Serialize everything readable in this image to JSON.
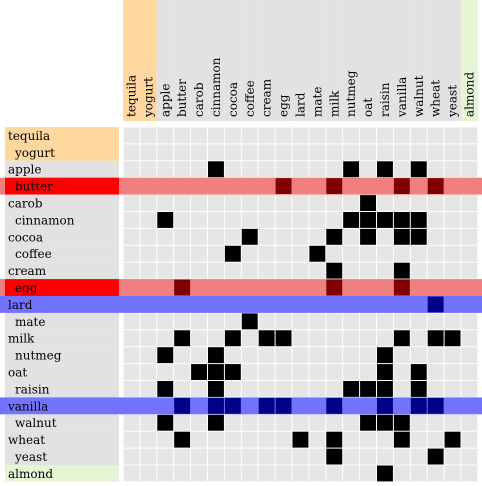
{
  "chart_data": {
    "type": "heatmap",
    "labels": [
      "tequila",
      "yogurt",
      "apple",
      "butter",
      "carob",
      "cinnamon",
      "cocoa",
      "coffee",
      "cream",
      "egg",
      "lard",
      "mate",
      "milk",
      "nutmeg",
      "oat",
      "raisin",
      "vanilla",
      "walnut",
      "wheat",
      "yeast",
      "almond"
    ],
    "row_indent": [
      false,
      true,
      false,
      true,
      false,
      true,
      false,
      true,
      false,
      true,
      false,
      true,
      false,
      true,
      false,
      true,
      false,
      true,
      false,
      true,
      false
    ],
    "highlight_rows": {
      "butter": "red",
      "egg": "red",
      "lard": "blue",
      "vanilla": "blue"
    },
    "highlight_columns": {
      "tequila": "orange",
      "yogurt": "orange",
      "almond": "green"
    },
    "cells": [
      [
        "apple",
        "cinnamon"
      ],
      [
        "apple",
        "nutmeg"
      ],
      [
        "apple",
        "raisin"
      ],
      [
        "apple",
        "walnut"
      ],
      [
        "butter",
        "egg"
      ],
      [
        "butter",
        "milk"
      ],
      [
        "butter",
        "vanilla"
      ],
      [
        "butter",
        "wheat"
      ],
      [
        "carob",
        "oat"
      ],
      [
        "cinnamon",
        "apple"
      ],
      [
        "cinnamon",
        "nutmeg"
      ],
      [
        "cinnamon",
        "oat"
      ],
      [
        "cinnamon",
        "raisin"
      ],
      [
        "cinnamon",
        "vanilla"
      ],
      [
        "cinnamon",
        "walnut"
      ],
      [
        "cocoa",
        "coffee"
      ],
      [
        "cocoa",
        "milk"
      ],
      [
        "cocoa",
        "oat"
      ],
      [
        "cocoa",
        "vanilla"
      ],
      [
        "cocoa",
        "walnut"
      ],
      [
        "coffee",
        "cocoa"
      ],
      [
        "coffee",
        "mate"
      ],
      [
        "cream",
        "milk"
      ],
      [
        "cream",
        "vanilla"
      ],
      [
        "egg",
        "butter"
      ],
      [
        "egg",
        "milk"
      ],
      [
        "egg",
        "vanilla"
      ],
      [
        "lard",
        "wheat"
      ],
      [
        "mate",
        "coffee"
      ],
      [
        "milk",
        "butter"
      ],
      [
        "milk",
        "cocoa"
      ],
      [
        "milk",
        "cream"
      ],
      [
        "milk",
        "egg"
      ],
      [
        "milk",
        "vanilla"
      ],
      [
        "milk",
        "wheat"
      ],
      [
        "milk",
        "yeast"
      ],
      [
        "nutmeg",
        "apple"
      ],
      [
        "nutmeg",
        "cinnamon"
      ],
      [
        "nutmeg",
        "raisin"
      ],
      [
        "oat",
        "carob"
      ],
      [
        "oat",
        "cinnamon"
      ],
      [
        "oat",
        "cocoa"
      ],
      [
        "oat",
        "raisin"
      ],
      [
        "oat",
        "walnut"
      ],
      [
        "raisin",
        "apple"
      ],
      [
        "raisin",
        "cinnamon"
      ],
      [
        "raisin",
        "nutmeg"
      ],
      [
        "raisin",
        "oat"
      ],
      [
        "raisin",
        "raisin"
      ],
      [
        "raisin",
        "walnut"
      ],
      [
        "vanilla",
        "butter"
      ],
      [
        "vanilla",
        "cinnamon"
      ],
      [
        "vanilla",
        "cocoa"
      ],
      [
        "vanilla",
        "cream"
      ],
      [
        "vanilla",
        "egg"
      ],
      [
        "vanilla",
        "milk"
      ],
      [
        "vanilla",
        "raisin"
      ],
      [
        "vanilla",
        "walnut"
      ],
      [
        "vanilla",
        "wheat"
      ],
      [
        "walnut",
        "apple"
      ],
      [
        "walnut",
        "cinnamon"
      ],
      [
        "walnut",
        "oat"
      ],
      [
        "walnut",
        "raisin"
      ],
      [
        "walnut",
        "vanilla"
      ],
      [
        "wheat",
        "butter"
      ],
      [
        "wheat",
        "lard"
      ],
      [
        "wheat",
        "milk"
      ],
      [
        "wheat",
        "vanilla"
      ],
      [
        "wheat",
        "yeast"
      ],
      [
        "yeast",
        "milk"
      ],
      [
        "yeast",
        "wheat"
      ],
      [
        "almond",
        "raisin"
      ]
    ]
  },
  "colors": {
    "cell": "#000000",
    "empty_cell": "#e6e6e6",
    "row_label_bg": "#e2e2e2",
    "red_band": "#f08080",
    "red_label": "#ff0000",
    "red_cell": "#800000",
    "blue_band": "#7373ff",
    "blue_cell": "#00008b",
    "orange": "#ffd8a0",
    "green": "#e4f5d4",
    "header_bg": "#e2e2e2"
  }
}
